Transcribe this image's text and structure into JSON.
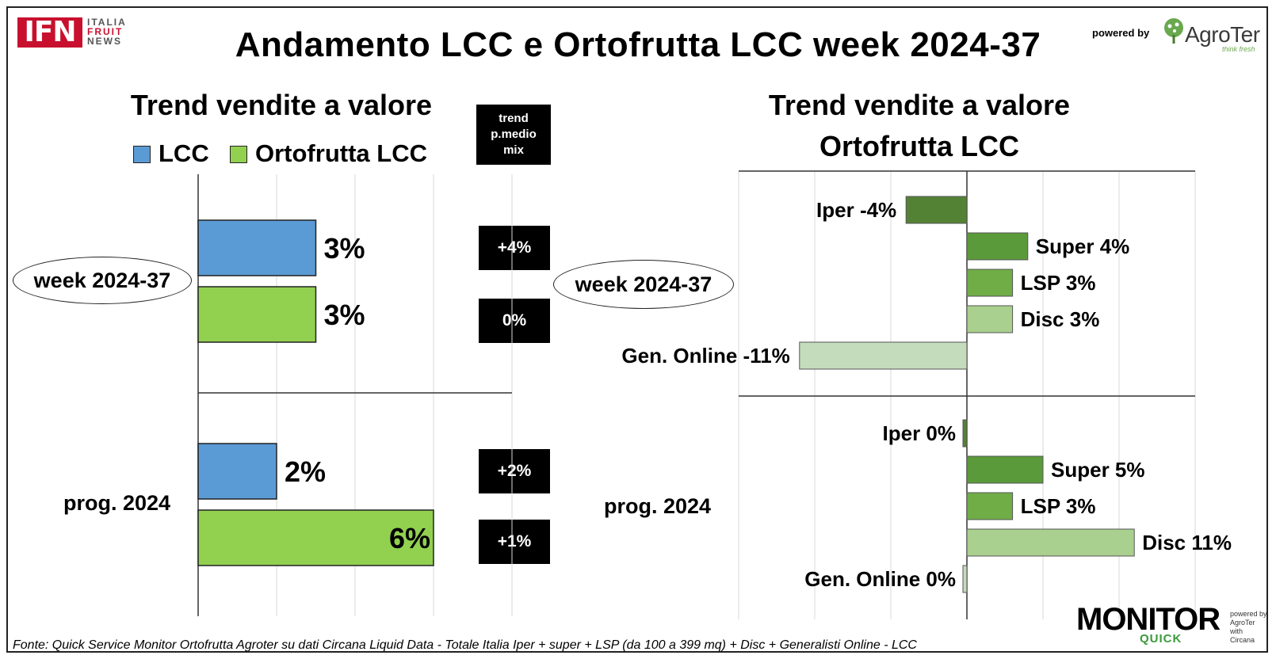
{
  "header": {
    "title": "Andamento LCC e Ortofrutta LCC week 2024-37",
    "ifn_logo": {
      "letters": "IFN",
      "line1": "ITALIA",
      "line2": "FRUIT",
      "line3": "NEWS"
    },
    "powered_by": "powered by",
    "agroter_logo": {
      "name": "AgroTer",
      "tagline": "think fresh"
    }
  },
  "left_panel": {
    "title": "Trend vendite a valore",
    "legend": [
      {
        "label": "LCC",
        "color": "#5b9bd5"
      },
      {
        "label": "Ortofrutta LCC",
        "color": "#92d050"
      }
    ],
    "trend_header": "trend p.medio mix",
    "groups": [
      {
        "label": "week 2024-37",
        "trend_boxes": [
          "+4%",
          "0%"
        ]
      },
      {
        "label": "prog. 2024",
        "trend_boxes": [
          "+2%",
          "+1%"
        ]
      }
    ]
  },
  "right_panel": {
    "title_line1": "Trend vendite a valore",
    "title_line2": "Ortofrutta LCC",
    "group_labels": [
      "week 2024-37",
      "prog. 2024"
    ]
  },
  "chart_data": [
    {
      "type": "bar",
      "orientation": "horizontal",
      "title": "Trend vendite a valore",
      "categories": [
        "week 2024-37",
        "prog. 2024"
      ],
      "series": [
        {
          "name": "LCC",
          "values": [
            3,
            2
          ],
          "labels": [
            "3%",
            "2%"
          ],
          "color": "#5b9bd5"
        },
        {
          "name": "Ortofrutta LCC",
          "values": [
            3,
            6
          ],
          "labels": [
            "3%",
            "6%"
          ],
          "color": "#92d050"
        }
      ],
      "xlim": [
        0,
        8
      ],
      "grid": true,
      "legend": "top"
    },
    {
      "type": "bar",
      "orientation": "horizontal",
      "title": "Trend vendite a valore Ortofrutta LCC",
      "groups": [
        {
          "name": "week 2024-37",
          "bars": [
            {
              "channel": "Iper",
              "value": -4,
              "label": "Iper -4%",
              "color": "#548235"
            },
            {
              "channel": "Super",
              "value": 4,
              "label": "Super 4%",
              "color": "#5b9a3a"
            },
            {
              "channel": "LSP",
              "value": 3,
              "label": "LSP 3%",
              "color": "#70ad47"
            },
            {
              "channel": "Disc",
              "value": 3,
              "label": "Disc 3%",
              "color": "#a9d08e"
            },
            {
              "channel": "Gen. Online",
              "value": -11,
              "label": "Gen. Online -11%",
              "color": "#c5dcbc"
            }
          ]
        },
        {
          "name": "prog. 2024",
          "bars": [
            {
              "channel": "Iper",
              "value": 0,
              "label": "Iper 0%",
              "color": "#548235"
            },
            {
              "channel": "Super",
              "value": 5,
              "label": "Super 5%",
              "color": "#5b9a3a"
            },
            {
              "channel": "LSP",
              "value": 3,
              "label": "LSP 3%",
              "color": "#70ad47"
            },
            {
              "channel": "Disc",
              "value": 11,
              "label": "Disc 11%",
              "color": "#a9d08e"
            },
            {
              "channel": "Gen. Online",
              "value": 0,
              "label": "Gen. Online 0%",
              "color": "#c5dcbc"
            }
          ]
        }
      ],
      "xlim": [
        -15,
        15
      ],
      "grid": true
    }
  ],
  "footer": {
    "source": "Fonte: Quick Service Monitor Ortofrutta Agroter su dati Circana Liquid Data - Totale Italia Iper + super + LSP (da 100 a 399 mq) + Disc + Generalisti Online - LCC",
    "monitor_logo": {
      "line1": "MONITOR",
      "line2": "QUICK"
    },
    "monitor_side": {
      "line1": "powered by",
      "line2": "AgroTer",
      "line3": "with",
      "line4": "Circana"
    }
  }
}
